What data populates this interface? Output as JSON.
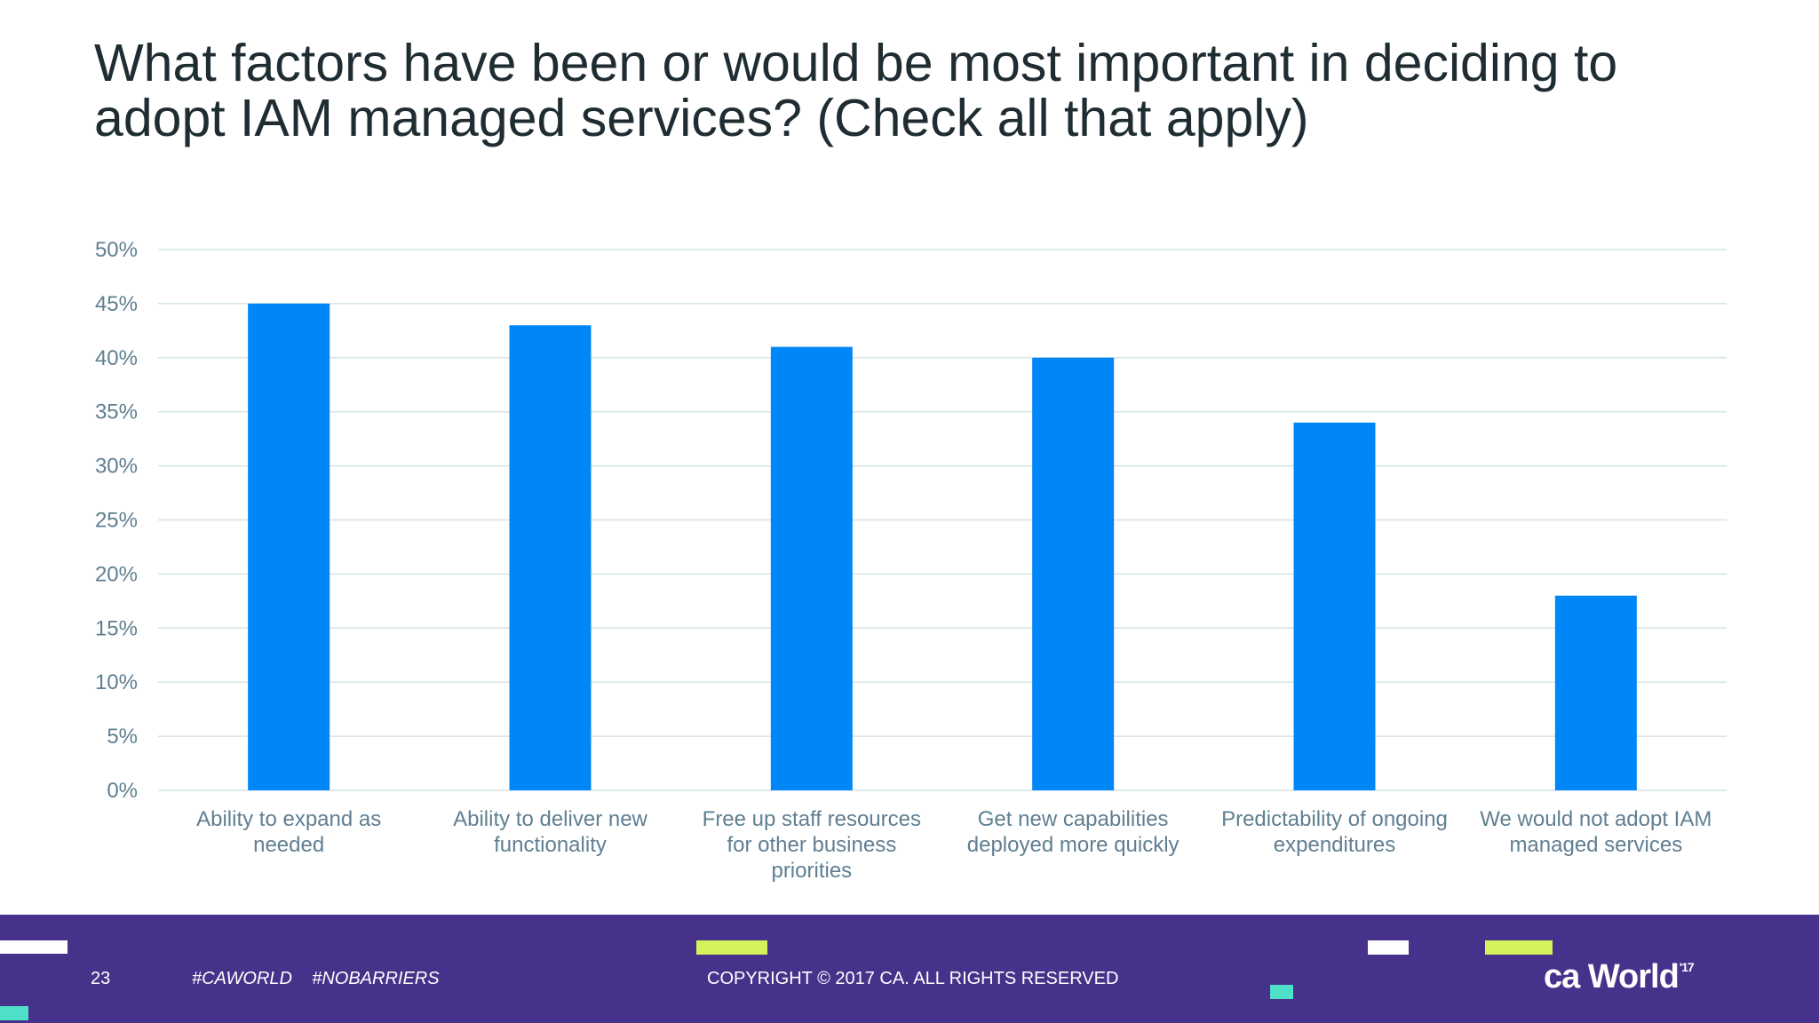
{
  "slide": {
    "title_line1": "What factors have been or would be most important in deciding to",
    "title_line2": "adopt IAM managed services? (Check all that apply)"
  },
  "chart_data": {
    "type": "bar",
    "title": "What factors have been or would be most important in deciding to adopt IAM managed services? (Check all that apply)",
    "categories": [
      [
        "Ability to expand as",
        "needed"
      ],
      [
        "Ability to deliver new",
        "functionality"
      ],
      [
        "Free up staff resources",
        "for other business",
        "priorities"
      ],
      [
        "Get new capabilities",
        "deployed more quickly"
      ],
      [
        "Predictability of ongoing",
        "expenditures"
      ],
      [
        "We would not adopt IAM",
        "managed services"
      ]
    ],
    "values": [
      45,
      43,
      41,
      40,
      34,
      18
    ],
    "ylim": [
      0,
      50
    ],
    "yticks": [
      "0%",
      "5%",
      "10%",
      "15%",
      "20%",
      "25%",
      "30%",
      "35%",
      "40%",
      "45%",
      "50%"
    ],
    "xlabel": "",
    "ylabel": "",
    "grid": true,
    "bar_color": "#0087f7",
    "tick_color": "#5f7f92",
    "grid_color": "#d5e3e8"
  },
  "footer": {
    "page_number": "23",
    "hashtags": "#CAWORLD    #NOBARRIERS",
    "copyright": "COPYRIGHT © 2017 CA. ALL RIGHTS RESERVED",
    "logo_main": "ca World",
    "logo_year": "'17",
    "background": "#46328a",
    "accent_green": "#d4f25a",
    "accent_teal": "#4fe0c9"
  }
}
